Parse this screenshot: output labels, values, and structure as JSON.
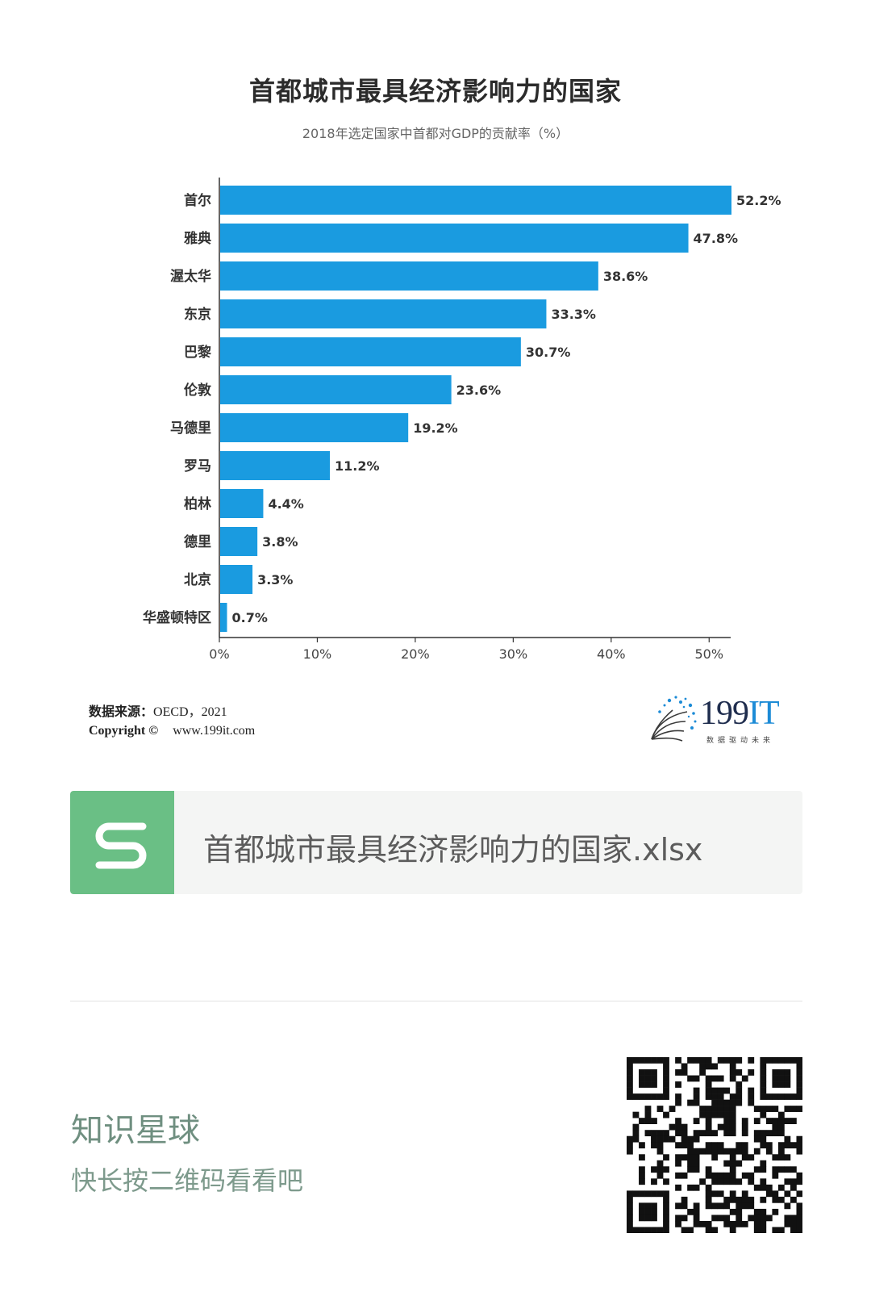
{
  "header": {
    "title": "首都城市最具经济影响力的国家",
    "subtitle": "2018年选定国家中首都对GDP的贡献率（%）"
  },
  "chart_data": {
    "type": "bar",
    "orientation": "horizontal",
    "title": "首都城市最具经济影响力的国家",
    "subtitle": "2018年选定国家中首都对GDP的贡献率（%）",
    "categories": [
      "首尔",
      "雅典",
      "渥太华",
      "东京",
      "巴黎",
      "伦敦",
      "马德里",
      "罗马",
      "柏林",
      "德里",
      "北京",
      "华盛顿特区"
    ],
    "values": [
      52.2,
      47.8,
      38.6,
      33.3,
      30.7,
      23.6,
      19.2,
      11.2,
      4.4,
      3.8,
      3.3,
      0.7
    ],
    "value_labels": [
      "52.2%",
      "47.8%",
      "38.6%",
      "33.3%",
      "30.7%",
      "23.6%",
      "19.2%",
      "11.2%",
      "4.4%",
      "3.8%",
      "3.3%",
      "0.7%"
    ],
    "xlim": [
      0,
      52.2
    ],
    "x_ticks": [
      0,
      10,
      20,
      30,
      40,
      50
    ],
    "x_tick_labels": [
      "0%",
      "10%",
      "20%",
      "30%",
      "40%",
      "50%"
    ],
    "xlabel": "",
    "ylabel": "",
    "grid": false,
    "bar_color": "#1a9be0"
  },
  "footer": {
    "source_label": "数据来源：",
    "source_value": "OECD，2021",
    "copyright_label": "Copyright ©",
    "website": "www.199it.com",
    "brand_number": "199",
    "brand_suffix": "IT",
    "brand_slogan": "数据驱动未来"
  },
  "file_card": {
    "icon": "spreadsheet-s-icon",
    "icon_color": "#6abf85",
    "file_name": "首都城市最具经济影响力的国家.xlsx"
  },
  "promo": {
    "title": "知识星球",
    "subtitle": "快长按二维码看看吧",
    "qr_icon": "qr-code-icon"
  }
}
